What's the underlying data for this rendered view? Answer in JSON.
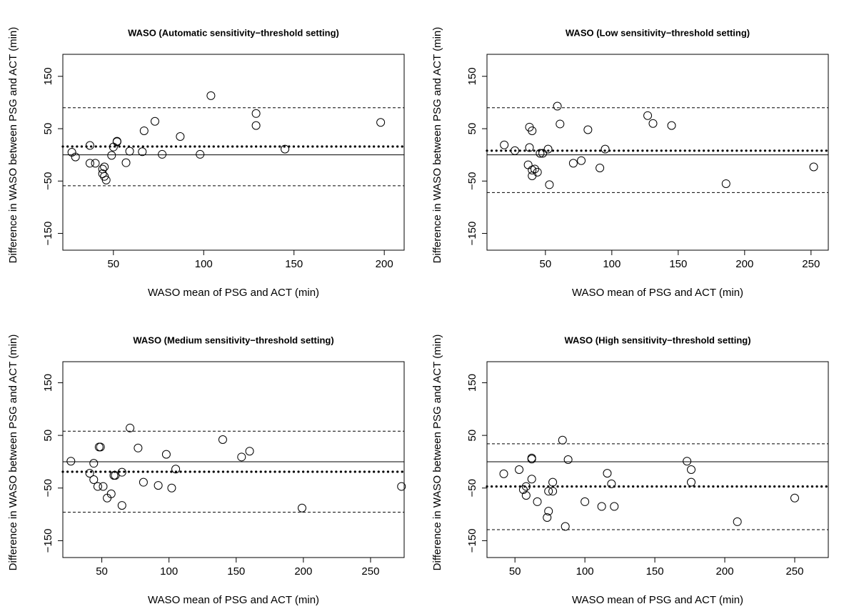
{
  "chart_data": [
    {
      "type": "scatter",
      "title": "WASO (Automatic sensitivity−threshold setting)",
      "xlabel": "WASO mean of PSG and ACT (min)",
      "ylabel": "Difference in WASO between PSG and ACT (min)",
      "x": [
        27,
        29,
        37,
        37,
        40,
        44,
        44,
        45,
        45,
        46,
        49,
        50,
        52,
        52,
        57,
        59,
        66,
        67,
        73,
        77,
        87,
        98,
        104,
        129,
        129,
        145,
        198
      ],
      "values": [
        5,
        -4,
        18,
        -16,
        -16,
        -27,
        -36,
        -41,
        -23,
        -48,
        -1,
        15,
        26,
        25,
        -15,
        7,
        6,
        46,
        64,
        1,
        35,
        1,
        113,
        79,
        56,
        11,
        62
      ],
      "xlim": [
        22,
        211
      ],
      "ylim": [
        -182,
        192
      ],
      "xticks": [
        50,
        100,
        150,
        200
      ],
      "yticks": [
        {
          "value": -150,
          "label": "−150"
        },
        {
          "value": -50,
          "label": "−50"
        },
        50,
        150
      ],
      "hlines": [
        {
          "value": 0,
          "style": "solid"
        },
        {
          "value": 16,
          "style": "dotted"
        },
        {
          "value": 90,
          "style": "dashed"
        },
        {
          "value": -59,
          "style": "dashed"
        }
      ]
    },
    {
      "type": "scatter",
      "title": "WASO (Low sensitivity−threshold setting)",
      "xlabel": "WASO mean of PSG and ACT (min)",
      "ylabel": "Difference in WASO between PSG and ACT (min)",
      "x": [
        19,
        27,
        38,
        37,
        38,
        40,
        40,
        40,
        42,
        44,
        46,
        48,
        52,
        53,
        59,
        61,
        71,
        77,
        82,
        91,
        95,
        127,
        131,
        145,
        186,
        252
      ],
      "values": [
        19,
        8,
        14,
        -19,
        53,
        46,
        -40,
        -29,
        -27,
        -33,
        3,
        3,
        11,
        -57,
        93,
        59,
        -16,
        -11,
        48,
        -25,
        11,
        75,
        60,
        56,
        -55,
        -23
      ],
      "xlim": [
        6,
        263
      ],
      "ylim": [
        -182,
        192
      ],
      "xticks": [
        50,
        100,
        150,
        200,
        250
      ],
      "yticks": [
        {
          "value": -150,
          "label": "−150"
        },
        {
          "value": -50,
          "label": "−50"
        },
        50,
        150
      ],
      "hlines": [
        {
          "value": 0,
          "style": "solid"
        },
        {
          "value": 8,
          "style": "dotted"
        },
        {
          "value": 90,
          "style": "dashed"
        },
        {
          "value": -72,
          "style": "dashed"
        }
      ]
    },
    {
      "type": "scatter",
      "title": "WASO (Medium sensitivity−threshold setting)",
      "xlabel": "WASO mean of PSG and ACT (min)",
      "ylabel": "Difference in WASO between PSG and ACT (min)",
      "x": [
        27,
        41,
        44,
        44,
        47,
        48,
        49,
        51,
        54,
        57,
        59,
        60,
        65,
        65,
        71,
        77,
        81,
        92,
        98,
        102,
        105,
        140,
        154,
        160,
        199,
        273
      ],
      "values": [
        1,
        -22,
        -3,
        -34,
        -47,
        28,
        28,
        -47,
        -69,
        -61,
        -26,
        -26,
        -20,
        -83,
        64,
        26,
        -39,
        -45,
        14,
        -50,
        -14,
        42,
        9,
        20,
        -88,
        -47
      ],
      "xlim": [
        21,
        275
      ],
      "ylim": [
        -182,
        190
      ],
      "xticks": [
        50,
        100,
        150,
        200,
        250
      ],
      "yticks": [
        {
          "value": -150,
          "label": "−150"
        },
        {
          "value": -50,
          "label": "−50"
        },
        50,
        150
      ],
      "hlines": [
        {
          "value": 0,
          "style": "solid"
        },
        {
          "value": -19,
          "style": "dotted"
        },
        {
          "value": 58,
          "style": "dashed"
        },
        {
          "value": -96,
          "style": "dashed"
        }
      ]
    },
    {
      "type": "scatter",
      "title": "WASO (High sensitivity−threshold setting)",
      "xlabel": "WASO mean of PSG and ACT (min)",
      "ylabel": "Difference in WASO between PSG and ACT (min)",
      "x": [
        42,
        53,
        56,
        58,
        58,
        62,
        62,
        62,
        66,
        73,
        74,
        74,
        77,
        77,
        84,
        86,
        88,
        100,
        112,
        116,
        119,
        121,
        173,
        176,
        176,
        209,
        250
      ],
      "values": [
        -23,
        -15,
        -53,
        -47,
        -64,
        -33,
        7,
        5,
        -76,
        -106,
        -56,
        -94,
        -39,
        -56,
        41,
        -123,
        4,
        -76,
        -85,
        -22,
        -42,
        -85,
        1,
        -15,
        -39,
        -114,
        -69
      ],
      "xlim": [
        30,
        274
      ],
      "ylim": [
        -182,
        190
      ],
      "xticks": [
        50,
        100,
        150,
        200,
        250
      ],
      "yticks": [
        {
          "value": -150,
          "label": "−150"
        },
        {
          "value": -50,
          "label": "−50"
        },
        50,
        150
      ],
      "hlines": [
        {
          "value": 0,
          "style": "solid"
        },
        {
          "value": -47,
          "style": "dotted"
        },
        {
          "value": 34,
          "style": "dashed"
        },
        {
          "value": -129,
          "style": "dashed"
        }
      ]
    }
  ]
}
